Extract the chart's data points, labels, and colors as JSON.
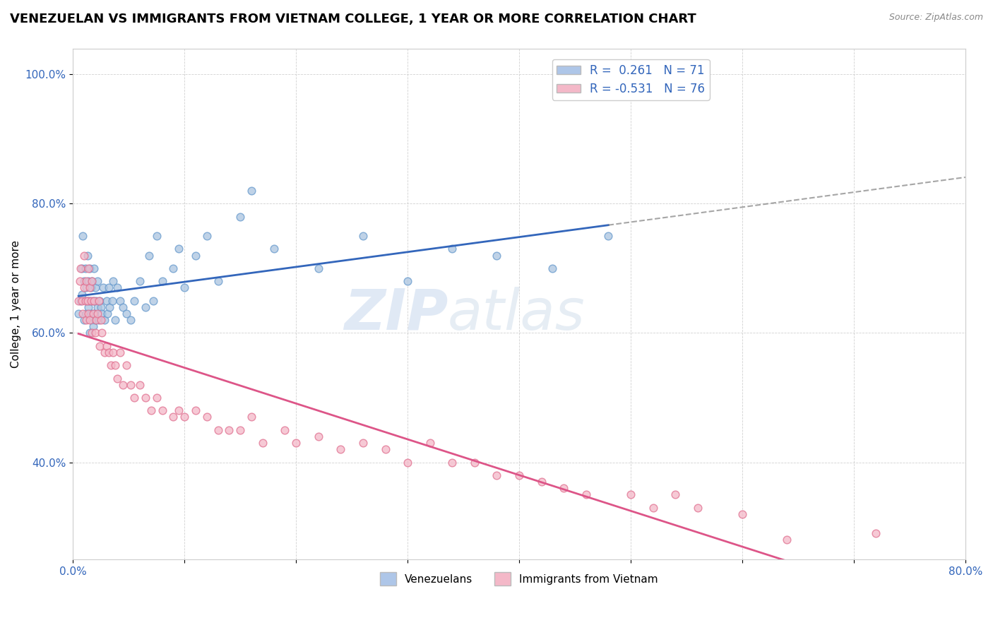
{
  "title": "VENEZUELAN VS IMMIGRANTS FROM VIETNAM COLLEGE, 1 YEAR OR MORE CORRELATION CHART",
  "source_text": "Source: ZipAtlas.com",
  "ylabel": "College, 1 year or more",
  "xlim": [
    0.0,
    0.8
  ],
  "ylim": [
    0.25,
    1.04
  ],
  "ytick_positions": [
    0.4,
    0.6,
    0.8,
    1.0
  ],
  "ytick_labels": [
    "40.0%",
    "60.0%",
    "80.0%",
    "100.0%"
  ],
  "xtick_positions": [
    0.0,
    0.1,
    0.2,
    0.3,
    0.4,
    0.5,
    0.6,
    0.7,
    0.8
  ],
  "xticklabels": [
    "0.0%",
    "",
    "",
    "",
    "",
    "",
    "",
    "",
    "80.0%"
  ],
  "r_blue": 0.261,
  "n_blue": 71,
  "r_pink": -0.531,
  "n_pink": 76,
  "blue_dot_color": "#aac4e0",
  "blue_dot_edge": "#6699cc",
  "pink_dot_color": "#f4b8c8",
  "pink_dot_edge": "#e07090",
  "blue_line_color": "#3366bb",
  "pink_line_color": "#dd5588",
  "legend_box_blue": "#aec6e8",
  "legend_box_pink": "#f4b8c8",
  "watermark_zip": "ZIP",
  "watermark_atlas": "atlas",
  "title_fontsize": 13,
  "label_fontsize": 11,
  "tick_fontsize": 11,
  "blue_scatter_x": [
    0.005,
    0.007,
    0.008,
    0.008,
    0.009,
    0.01,
    0.01,
    0.011,
    0.012,
    0.012,
    0.013,
    0.013,
    0.014,
    0.014,
    0.015,
    0.015,
    0.015,
    0.016,
    0.016,
    0.017,
    0.017,
    0.018,
    0.018,
    0.019,
    0.019,
    0.02,
    0.02,
    0.021,
    0.022,
    0.022,
    0.023,
    0.024,
    0.025,
    0.026,
    0.027,
    0.028,
    0.03,
    0.031,
    0.032,
    0.033,
    0.035,
    0.036,
    0.038,
    0.04,
    0.042,
    0.045,
    0.048,
    0.052,
    0.055,
    0.06,
    0.065,
    0.068,
    0.072,
    0.075,
    0.08,
    0.09,
    0.095,
    0.1,
    0.11,
    0.12,
    0.13,
    0.15,
    0.16,
    0.18,
    0.22,
    0.26,
    0.3,
    0.34,
    0.38,
    0.43,
    0.48
  ],
  "blue_scatter_y": [
    0.63,
    0.65,
    0.7,
    0.66,
    0.75,
    0.62,
    0.68,
    0.7,
    0.63,
    0.67,
    0.65,
    0.72,
    0.64,
    0.68,
    0.6,
    0.65,
    0.7,
    0.63,
    0.67,
    0.62,
    0.68,
    0.61,
    0.65,
    0.63,
    0.7,
    0.62,
    0.67,
    0.65,
    0.64,
    0.68,
    0.62,
    0.65,
    0.64,
    0.63,
    0.67,
    0.62,
    0.65,
    0.63,
    0.67,
    0.64,
    0.65,
    0.68,
    0.62,
    0.67,
    0.65,
    0.64,
    0.63,
    0.62,
    0.65,
    0.68,
    0.64,
    0.72,
    0.65,
    0.75,
    0.68,
    0.7,
    0.73,
    0.67,
    0.72,
    0.75,
    0.68,
    0.78,
    0.82,
    0.73,
    0.7,
    0.75,
    0.68,
    0.73,
    0.72,
    0.7,
    0.75
  ],
  "pink_scatter_x": [
    0.005,
    0.006,
    0.007,
    0.008,
    0.009,
    0.01,
    0.01,
    0.011,
    0.012,
    0.012,
    0.013,
    0.014,
    0.014,
    0.015,
    0.015,
    0.016,
    0.017,
    0.017,
    0.018,
    0.019,
    0.02,
    0.021,
    0.022,
    0.023,
    0.024,
    0.025,
    0.026,
    0.028,
    0.03,
    0.032,
    0.034,
    0.036,
    0.038,
    0.04,
    0.042,
    0.045,
    0.048,
    0.052,
    0.055,
    0.06,
    0.065,
    0.07,
    0.075,
    0.08,
    0.09,
    0.095,
    0.1,
    0.11,
    0.12,
    0.13,
    0.14,
    0.15,
    0.16,
    0.17,
    0.19,
    0.2,
    0.22,
    0.24,
    0.26,
    0.28,
    0.3,
    0.32,
    0.34,
    0.36,
    0.38,
    0.4,
    0.42,
    0.44,
    0.46,
    0.5,
    0.52,
    0.54,
    0.56,
    0.6,
    0.64,
    0.72
  ],
  "pink_scatter_y": [
    0.65,
    0.68,
    0.7,
    0.65,
    0.63,
    0.67,
    0.72,
    0.65,
    0.68,
    0.62,
    0.65,
    0.7,
    0.63,
    0.67,
    0.62,
    0.65,
    0.68,
    0.6,
    0.63,
    0.65,
    0.6,
    0.62,
    0.63,
    0.65,
    0.58,
    0.62,
    0.6,
    0.57,
    0.58,
    0.57,
    0.55,
    0.57,
    0.55,
    0.53,
    0.57,
    0.52,
    0.55,
    0.52,
    0.5,
    0.52,
    0.5,
    0.48,
    0.5,
    0.48,
    0.47,
    0.48,
    0.47,
    0.48,
    0.47,
    0.45,
    0.45,
    0.45,
    0.47,
    0.43,
    0.45,
    0.43,
    0.44,
    0.42,
    0.43,
    0.42,
    0.4,
    0.43,
    0.4,
    0.4,
    0.38,
    0.38,
    0.37,
    0.36,
    0.35,
    0.35,
    0.33,
    0.35,
    0.33,
    0.32,
    0.28,
    0.29
  ]
}
